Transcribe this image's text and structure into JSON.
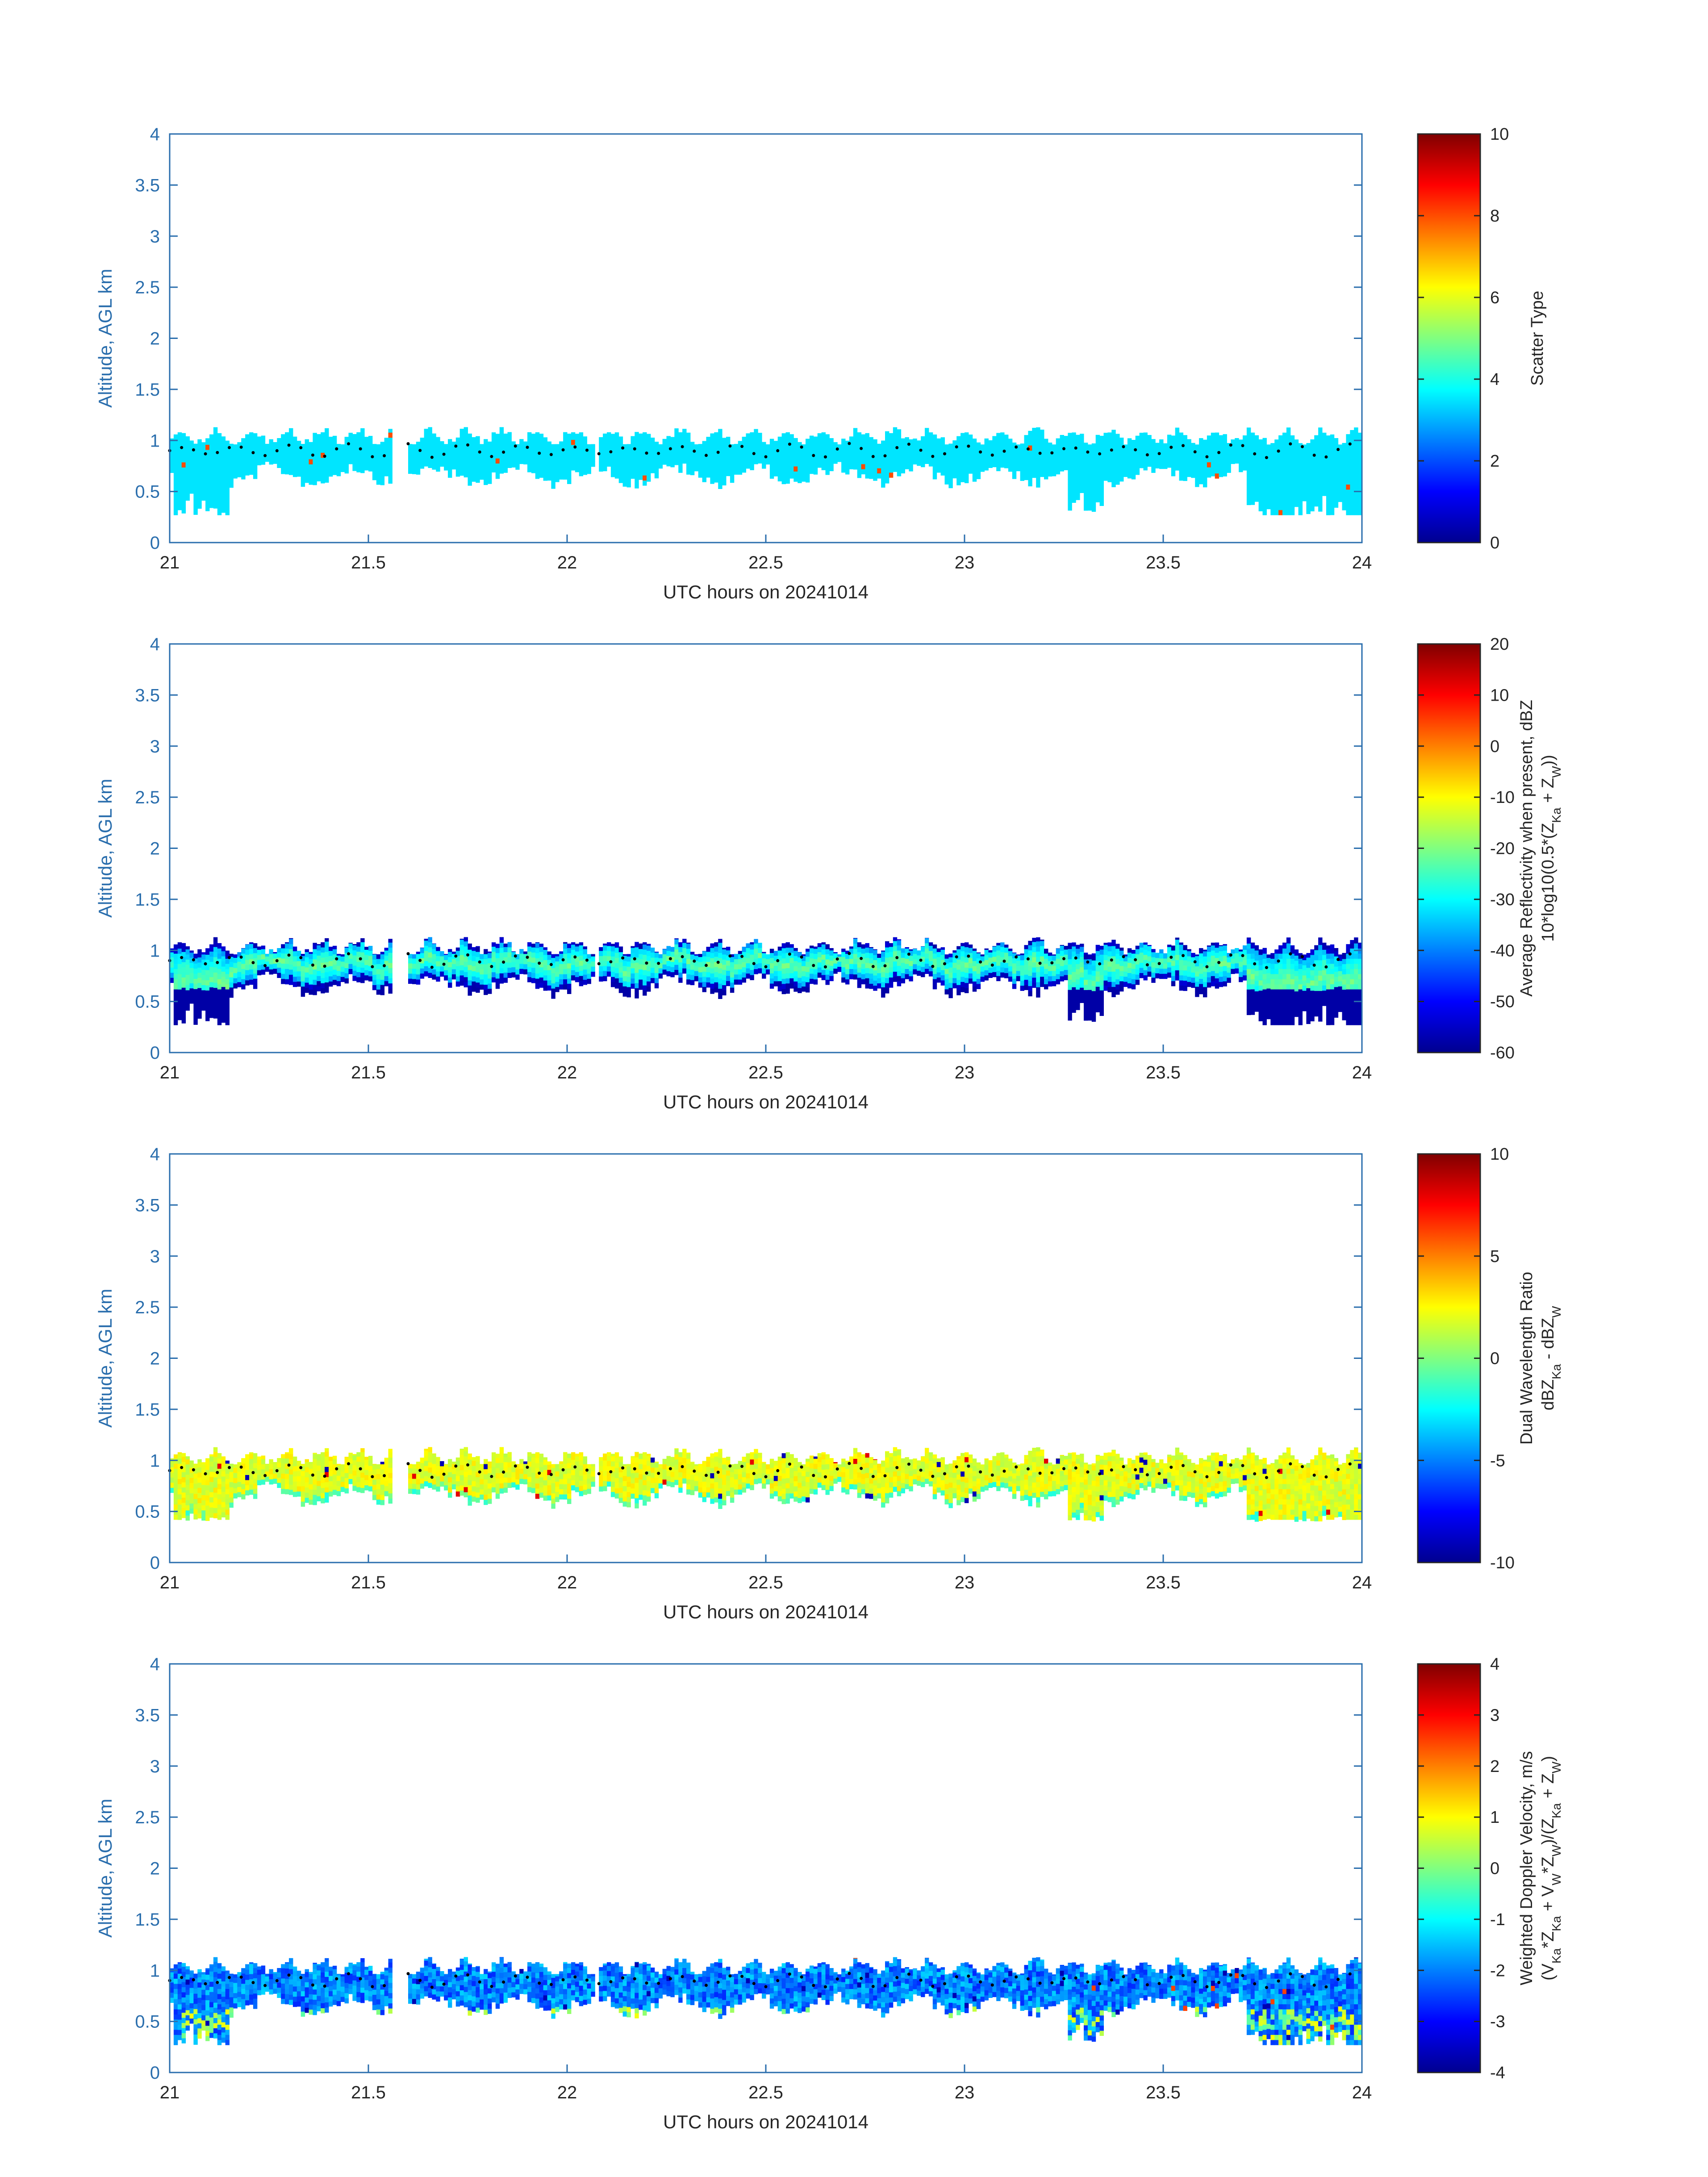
{
  "figure": {
    "date": "20241014",
    "xlabel": "UTC hours on 20241014",
    "ylabel": "Altitude, AGL km"
  },
  "chart_data": [
    {
      "type": "heatmap",
      "panel": "scatter-type",
      "x": [
        21,
        24
      ],
      "xlim": [
        21,
        24
      ],
      "ylim": [
        0,
        4
      ],
      "xticks": [
        "21",
        "21.5",
        "22",
        "22.5",
        "23",
        "23.5",
        "24"
      ],
      "yticks": [
        "0",
        "0.5",
        "1",
        "1.5",
        "2",
        "2.5",
        "3",
        "3.5",
        "4"
      ],
      "xlabel": "UTC hours on 20241014",
      "ylabel": "Altitude, AGL km",
      "colorbar": {
        "label": [
          "Scatter Type"
        ],
        "ticks": [
          "0",
          "2",
          "4",
          "6",
          "8",
          "10"
        ],
        "range": [
          0,
          10
        ]
      },
      "layer": {
        "base_km": [
          0.3,
          0.85
        ],
        "top_km": [
          1.0,
          1.15
        ],
        "dominant_value": 3.5
      },
      "cloud_top_dots_km_approx": 0.9,
      "notes": "cloud layer mostly value ~3.5 (cyan) with isolated value ~8 (red) near surface"
    },
    {
      "type": "heatmap",
      "panel": "reflectivity",
      "xlim": [
        21,
        24
      ],
      "ylim": [
        0,
        4
      ],
      "xticks": [
        "21",
        "21.5",
        "22",
        "22.5",
        "23",
        "23.5",
        "24"
      ],
      "yticks": [
        "0",
        "0.5",
        "1",
        "1.5",
        "2",
        "2.5",
        "3",
        "3.5",
        "4"
      ],
      "xlabel": "UTC hours on 20241014",
      "ylabel": "Altitude, AGL km",
      "colorbar": {
        "label": [
          "Average Reflectivity when present, dBZ",
          "10*log10(0.5*(Z_Ka + Z_W))"
        ],
        "ticks": [
          "20",
          "10",
          "0",
          "-10",
          "-20",
          "-30",
          "-40",
          "-50",
          "-60"
        ],
        "range": [
          -60,
          20
        ]
      },
      "layer": {
        "base_km": [
          0.3,
          0.85
        ],
        "top_km": [
          1.0,
          1.15
        ],
        "core_value": -35,
        "edge_value": -58
      }
    },
    {
      "type": "heatmap",
      "panel": "dual-wavelength-ratio",
      "xlim": [
        21,
        24
      ],
      "ylim": [
        0,
        4
      ],
      "xticks": [
        "21",
        "21.5",
        "22",
        "22.5",
        "23",
        "23.5",
        "24"
      ],
      "yticks": [
        "0",
        "0.5",
        "1",
        "1.5",
        "2",
        "2.5",
        "3",
        "3.5",
        "4"
      ],
      "xlabel": "UTC hours on 20241014",
      "ylabel": "Altitude, AGL km",
      "colorbar": {
        "label": [
          "Dual Wavelength Ratio",
          "dBZ_Ka - dBZ_W"
        ],
        "ticks": [
          "10",
          "5",
          "0",
          "-5",
          "-10"
        ],
        "range": [
          -10,
          10
        ]
      },
      "layer": {
        "base_km": [
          0.4,
          0.85
        ],
        "top_km": [
          1.0,
          1.15
        ],
        "dominant_value": 1.5
      }
    },
    {
      "type": "heatmap",
      "panel": "doppler-velocity",
      "xlim": [
        21,
        24
      ],
      "ylim": [
        0,
        4
      ],
      "xticks": [
        "21",
        "21.5",
        "22",
        "22.5",
        "23",
        "23.5",
        "24"
      ],
      "yticks": [
        "0",
        "0.5",
        "1",
        "1.5",
        "2",
        "2.5",
        "3",
        "3.5",
        "4"
      ],
      "xlabel": "UTC hours on 20241014",
      "ylabel": "Altitude, AGL km",
      "colorbar": {
        "label": [
          "Weighted Doppler Velocity, m/s",
          "(V_Ka*Z_Ka + V_W*Z_W)/(Z_Ka + Z_W)"
        ],
        "ticks": [
          "4",
          "3",
          "2",
          "1",
          "0",
          "-1",
          "-2",
          "-3",
          "-4"
        ],
        "range": [
          -4,
          4
        ]
      },
      "layer": {
        "base_km": [
          0.3,
          0.85
        ],
        "top_km": [
          1.0,
          1.15
        ],
        "dominant_value": -1.5
      }
    }
  ]
}
